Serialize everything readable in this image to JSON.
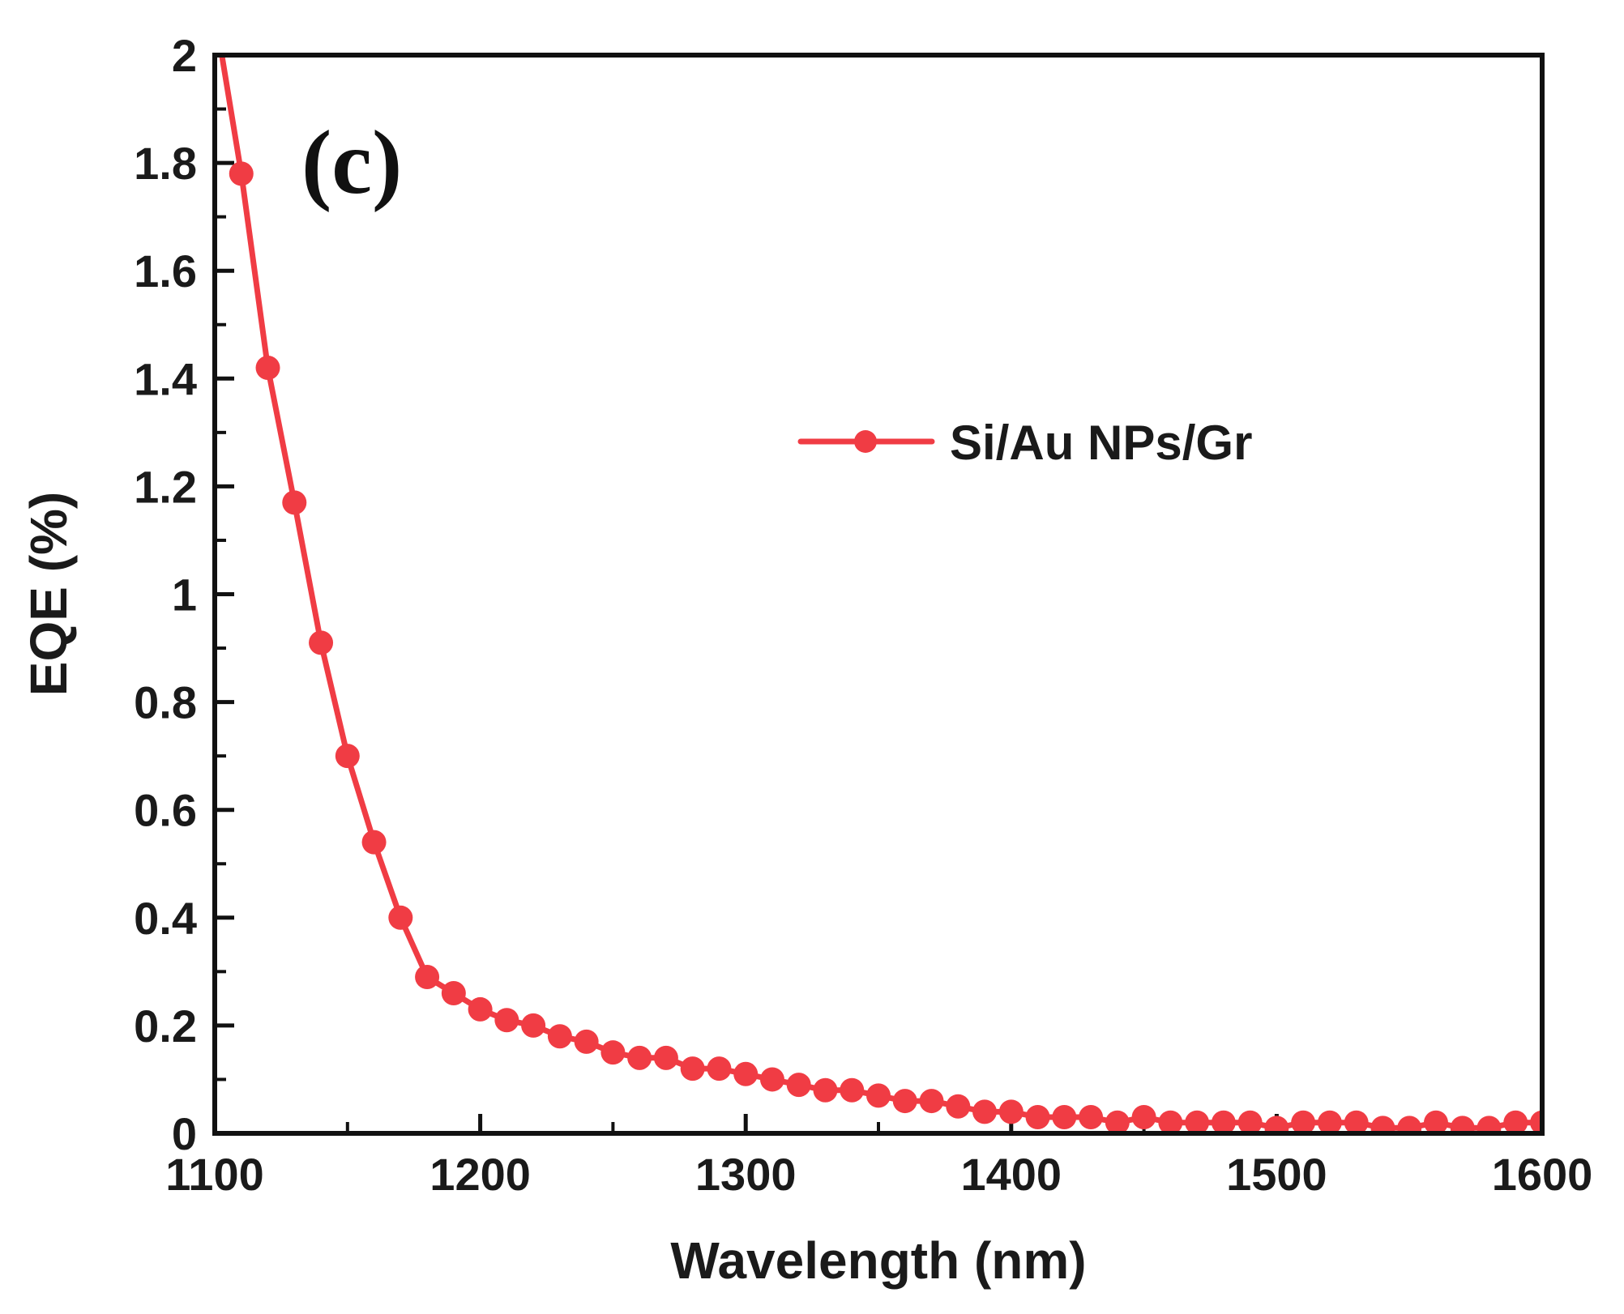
{
  "chart_data": {
    "type": "line",
    "panel_label": "(c)",
    "xlabel": "Wavelength (nm)",
    "ylabel": "EQE (%)",
    "xlim": [
      1100,
      1600
    ],
    "ylim": [
      0,
      2
    ],
    "xticks": [
      1100,
      1200,
      1300,
      1400,
      1500,
      1600
    ],
    "xtick_labels": [
      "1100",
      "1200",
      "1300",
      "1400",
      "1500",
      "1600"
    ],
    "yticks": [
      0,
      0.2,
      0.4,
      0.6,
      0.8,
      1,
      1.2,
      1.4,
      1.6,
      1.8,
      2
    ],
    "ytick_labels": [
      "0",
      "0.2",
      "0.4",
      "0.6",
      "0.8",
      "1",
      "1.2",
      "1.4",
      "1.6",
      "1.8",
      "2"
    ],
    "grid": false,
    "legend_position": "upper-right",
    "series": [
      {
        "name": "Si/Au NPs/Gr",
        "color": "#f03c44",
        "marker": "circle",
        "x": [
          1100,
          1110,
          1120,
          1130,
          1140,
          1150,
          1160,
          1170,
          1180,
          1190,
          1200,
          1210,
          1220,
          1230,
          1240,
          1250,
          1260,
          1270,
          1280,
          1290,
          1300,
          1310,
          1320,
          1330,
          1340,
          1350,
          1360,
          1370,
          1380,
          1390,
          1400,
          1410,
          1420,
          1430,
          1440,
          1450,
          1460,
          1470,
          1480,
          1490,
          1500,
          1510,
          1520,
          1530,
          1540,
          1550,
          1560,
          1570,
          1580,
          1590,
          1600
        ],
        "y": [
          2.08,
          1.78,
          1.42,
          1.17,
          0.91,
          0.7,
          0.54,
          0.4,
          0.29,
          0.26,
          0.23,
          0.21,
          0.2,
          0.18,
          0.17,
          0.15,
          0.14,
          0.14,
          0.12,
          0.12,
          0.11,
          0.1,
          0.09,
          0.08,
          0.08,
          0.07,
          0.06,
          0.06,
          0.05,
          0.04,
          0.04,
          0.03,
          0.03,
          0.03,
          0.02,
          0.03,
          0.02,
          0.02,
          0.02,
          0.02,
          0.01,
          0.02,
          0.02,
          0.02,
          0.01,
          0.01,
          0.02,
          0.01,
          0.01,
          0.02,
          0.02
        ]
      }
    ]
  }
}
